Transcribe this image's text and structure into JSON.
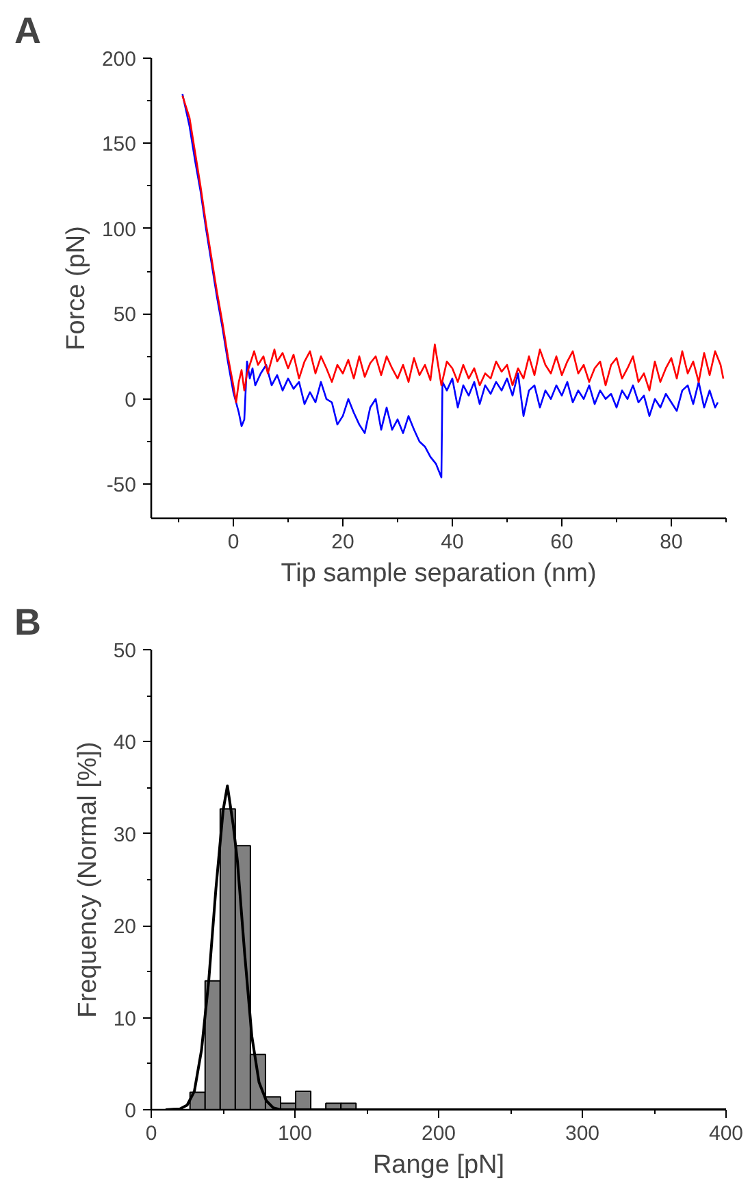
{
  "chart_data": [
    {
      "type": "line",
      "annotations": [
        "A"
      ],
      "xlabel": "Tip sample separation (nm)",
      "ylabel": "Force (pN)",
      "xlim": [
        -15,
        90
      ],
      "ylim": [
        -70,
        200
      ],
      "xticks": [
        {
          "value": -10,
          "label": null
        },
        0,
        {
          "value": 10,
          "label": null
        },
        20,
        {
          "value": 30,
          "label": null
        },
        40,
        {
          "value": 50,
          "label": null
        },
        60,
        {
          "value": 70,
          "label": null
        },
        80,
        {
          "value": 90,
          "label": null
        }
      ],
      "yticks": [
        -50,
        {
          "value": -25,
          "label": null
        },
        0,
        {
          "value": 25,
          "label": null
        },
        50,
        {
          "value": 75,
          "label": null
        },
        100,
        {
          "value": 125,
          "label": null
        },
        150,
        {
          "value": 175,
          "label": null
        },
        200
      ],
      "series": [
        {
          "color": "#0000ff",
          "x": [
            -9.3,
            -8,
            -7,
            -6,
            -5,
            -4,
            -3,
            -2,
            -1,
            0,
            0.5,
            1,
            1.5,
            2,
            2.5,
            3,
            3.5,
            4,
            5,
            6,
            7,
            8,
            9,
            10,
            11,
            12,
            13,
            14,
            15,
            16,
            17,
            18,
            19,
            20,
            21,
            22,
            23,
            24,
            25,
            26,
            27,
            28,
            29,
            30,
            31,
            32,
            33,
            34,
            35,
            36,
            37,
            38,
            38.2,
            39,
            40,
            41,
            42,
            43,
            44,
            45,
            46,
            47,
            48,
            49,
            50,
            51,
            52,
            53,
            54,
            55,
            56,
            57,
            58,
            59,
            60,
            61,
            62,
            63,
            64,
            65,
            66,
            67,
            68,
            69,
            70,
            71,
            72,
            73,
            74,
            75,
            76,
            77,
            78,
            79,
            80,
            81,
            82,
            83,
            84,
            85,
            86,
            87,
            88,
            88.5
          ],
          "values": [
            179,
            160,
            140,
            122,
            100,
            80,
            60,
            42,
            22,
            4,
            -2,
            -8,
            -16,
            -12,
            22,
            12,
            18,
            8,
            15,
            20,
            8,
            14,
            5,
            12,
            6,
            10,
            -3,
            4,
            -2,
            10,
            0,
            -2,
            -15,
            -10,
            0,
            -8,
            -15,
            -20,
            -5,
            0,
            -18,
            -5,
            -18,
            -12,
            -20,
            -10,
            -18,
            -25,
            -28,
            -34,
            -38,
            -46,
            10,
            5,
            12,
            -5,
            8,
            2,
            10,
            -3,
            8,
            3,
            10,
            5,
            12,
            2,
            15,
            -10,
            5,
            8,
            -5,
            5,
            0,
            8,
            2,
            10,
            -2,
            5,
            0,
            8,
            -3,
            5,
            0,
            3,
            -5,
            5,
            0,
            8,
            -2,
            2,
            -10,
            0,
            -5,
            3,
            -2,
            -7,
            5,
            8,
            -3,
            10,
            -5,
            5,
            -5,
            -2
          ]
        },
        {
          "color": "#ff0000",
          "x": [
            -9.3,
            -8,
            -7,
            -6,
            -5,
            -4,
            -3,
            -2,
            -1,
            0,
            0.5,
            1,
            1.5,
            2,
            2.5,
            3,
            3.8,
            4.5,
            5.5,
            6.3,
            7.5,
            8,
            9,
            10,
            11,
            12,
            13,
            14,
            15,
            16,
            17,
            18,
            19,
            20,
            21,
            22,
            23,
            24,
            25,
            26,
            27,
            28,
            29,
            30,
            31,
            32,
            33,
            34,
            35,
            36,
            36.8,
            37.5,
            38,
            39,
            40,
            41,
            42,
            43,
            44,
            45,
            46,
            47,
            48,
            49,
            50,
            51,
            52,
            53,
            54,
            55,
            56,
            57,
            58,
            59,
            60,
            61,
            62,
            63,
            64,
            65,
            66,
            67,
            68,
            69,
            70,
            71,
            72,
            73,
            74,
            75,
            76,
            77,
            78,
            79,
            80,
            81,
            82,
            83,
            84,
            85,
            86,
            87,
            88,
            89,
            89.5
          ],
          "values": [
            178,
            165,
            145,
            125,
            103,
            83,
            63,
            45,
            25,
            8,
            -2,
            10,
            17,
            5,
            15,
            20,
            28,
            20,
            25,
            15,
            29,
            22,
            27,
            18,
            26,
            12,
            22,
            28,
            15,
            25,
            18,
            10,
            20,
            15,
            23,
            12,
            25,
            13,
            21,
            25,
            14,
            25,
            18,
            12,
            20,
            10,
            24,
            14,
            20,
            11,
            32,
            18,
            8,
            22,
            18,
            10,
            20,
            12,
            18,
            8,
            15,
            12,
            22,
            16,
            20,
            8,
            18,
            12,
            25,
            14,
            29,
            20,
            15,
            25,
            14,
            22,
            28,
            15,
            20,
            10,
            18,
            22,
            8,
            20,
            24,
            12,
            18,
            25,
            10,
            15,
            5,
            22,
            10,
            18,
            24,
            12,
            28,
            15,
            22,
            10,
            27,
            14,
            28,
            20,
            12
          ]
        }
      ]
    },
    {
      "type": "histogram",
      "annotations": [
        "B"
      ],
      "xlabel": "Range [pN]",
      "ylabel": "Frequency (Normal [%])",
      "xlim": [
        0,
        400
      ],
      "ylim": [
        0,
        50
      ],
      "xticks": [
        0,
        {
          "value": 50,
          "label": null
        },
        100,
        {
          "value": 150,
          "label": null
        },
        200,
        {
          "value": 250,
          "label": null
        },
        300,
        {
          "value": 350,
          "label": null
        },
        400
      ],
      "yticks": [
        0,
        {
          "value": 5,
          "label": null
        },
        10,
        {
          "value": 15,
          "label": null
        },
        20,
        {
          "value": 25,
          "label": null
        },
        30,
        {
          "value": 35,
          "label": null
        },
        40,
        {
          "value": 45,
          "label": null
        },
        50
      ],
      "series": [
        {
          "type": "histogram",
          "color": "#808080",
          "bins": [
            27,
            37.5,
            48,
            58.5,
            69,
            79.5,
            90,
            100.5,
            111,
            121.5,
            132,
            142.5
          ],
          "values": [
            1.9,
            14,
            32.7,
            28.7,
            6,
            1.4,
            0.7,
            2,
            0,
            0.7,
            0.7
          ]
        },
        {
          "type": "line",
          "color": "#000000",
          "x": [
            10,
            20,
            25,
            30,
            35,
            40,
            45,
            50,
            53,
            57,
            60,
            65,
            70,
            75,
            80,
            85,
            90,
            400
          ],
          "values": [
            0,
            0.1,
            0.5,
            2,
            6.5,
            14,
            24,
            32.5,
            35.2,
            31,
            27,
            17,
            8,
            3,
            1,
            0.2,
            0,
            0
          ]
        }
      ]
    }
  ]
}
